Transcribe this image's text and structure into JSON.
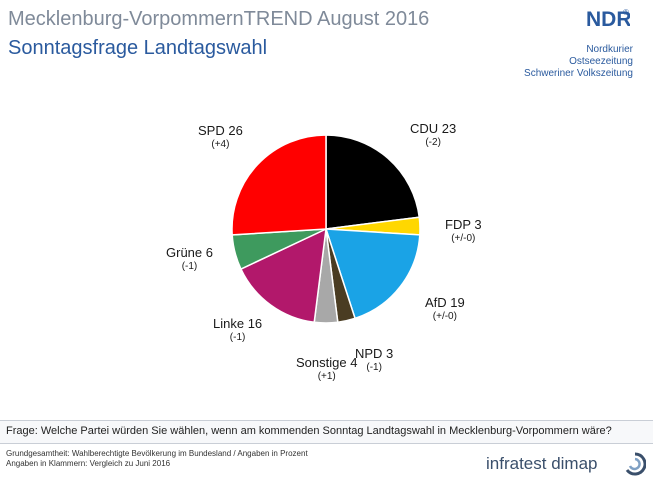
{
  "header": {
    "title": "Mecklenburg-VorpommernTREND August 2016",
    "subtitle": "Sonntagsfrage Landtagswahl",
    "logo_text": "NDR",
    "partners": [
      "Nordkurier",
      "Ostseezeitung",
      "Schweriner Volkszeitung"
    ]
  },
  "footer": {
    "question": "Frage: Welche Partei würden Sie wählen, wenn am kommenden Sonntag Landtagswahl in Mecklenburg-Vorpommern wäre?",
    "basis_line1": "Grundgesamtheit: Wahlberechtigte Bevölkerung im Bundesland / Angaben in Prozent",
    "basis_line2": "Angaben in Klammern: Vergleich zu Juni 2016",
    "brand": "infratest dimap"
  },
  "colors": {
    "title": "#7f8a99",
    "subtitle": "#2a5a9e",
    "brand": "#3a4f6b"
  },
  "chart_data": {
    "type": "pie",
    "title": "Sonntagsfrage Landtagswahl",
    "slices": [
      {
        "label": "CDU 23",
        "party": "CDU",
        "value": 23,
        "change": "(-2)",
        "color": "#000000"
      },
      {
        "label": "FDP 3",
        "party": "FDP",
        "value": 3,
        "change": "(+/-0)",
        "color": "#ffd700"
      },
      {
        "label": "AfD 19",
        "party": "AfD",
        "value": 19,
        "change": "(+/-0)",
        "color": "#1aa3e6"
      },
      {
        "label": "NPD 3",
        "party": "NPD",
        "value": 3,
        "change": "(-1)",
        "color": "#4a3c22"
      },
      {
        "label": "Sonstige 4",
        "party": "Sonstige",
        "value": 4,
        "change": "(+1)",
        "color": "#a8a8a8"
      },
      {
        "label": "Linke 16",
        "party": "Linke",
        "value": 16,
        "change": "(-1)",
        "color": "#b2186b"
      },
      {
        "label": "Grüne 6",
        "party": "Grüne",
        "value": 6,
        "change": "(-1)",
        "color": "#3e9a5e"
      },
      {
        "label": "SPD 26",
        "party": "SPD",
        "value": 26,
        "change": "(+4)",
        "color": "#ff0000"
      }
    ]
  }
}
